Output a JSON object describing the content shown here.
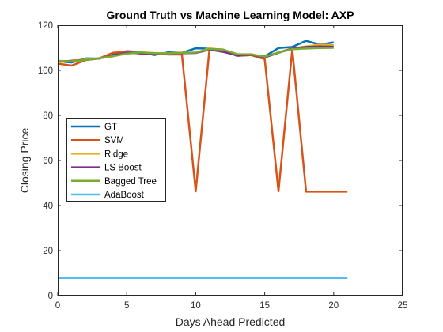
{
  "chart_data": {
    "type": "line",
    "title": "Ground Truth vs Machine Learning Model: AXP",
    "xlabel": "Days Ahead Predicted",
    "ylabel": "Closing Price",
    "xlim": [
      0,
      25
    ],
    "ylim": [
      0,
      120
    ],
    "x_ticks": [
      "0",
      "5",
      "10",
      "15",
      "20",
      "25"
    ],
    "y_ticks": [
      "0",
      "20",
      "40",
      "60",
      "80",
      "100",
      "120"
    ],
    "grid": false,
    "box": true,
    "legend_position": "middle-left",
    "x": [
      0,
      1,
      2,
      3,
      4,
      5,
      6,
      7,
      8,
      9,
      10,
      11,
      12,
      13,
      14,
      15,
      16,
      17,
      18,
      19,
      20,
      21
    ],
    "series": [
      {
        "name": "GT",
        "color": "#0072BD",
        "values": [
          104,
          103.5,
          105.3,
          105.2,
          107.3,
          108.5,
          108.2,
          106.8,
          108.0,
          107.8,
          109.8,
          109.6,
          108.7,
          106.4,
          106.8,
          106.2,
          109.9,
          110.4,
          113.1,
          111.4,
          112.4,
          null
        ]
      },
      {
        "name": "SVM",
        "color": "#D95319",
        "values": [
          103,
          102.1,
          104.5,
          105.3,
          107.8,
          108.3,
          107.4,
          107.5,
          107.0,
          107.0,
          46.3,
          109.6,
          109.2,
          106.5,
          106.8,
          105.0,
          46.3,
          109.3,
          46.2,
          46.2,
          46.2,
          46.2
        ]
      },
      {
        "name": "Ridge",
        "color": "#EDB120",
        "values": [
          103.5,
          104.3,
          104.8,
          105.4,
          106.2,
          107.5,
          108.0,
          107.7,
          107.6,
          107.9,
          107.8,
          109.8,
          109.0,
          106.9,
          107.2,
          105.9,
          108.0,
          109.8,
          110.6,
          111.4,
          111.2,
          null
        ]
      },
      {
        "name": "LS Boost",
        "color": "#7E2F8E",
        "values": [
          103.9,
          104.2,
          104.6,
          105.3,
          106.5,
          107.8,
          107.6,
          107.4,
          107.5,
          107.6,
          107.7,
          109.2,
          108.2,
          106.7,
          107.0,
          105.7,
          107.8,
          109.7,
          110.4,
          110.6,
          110.5,
          null
        ]
      },
      {
        "name": "Bagged Tree",
        "color": "#77AC30",
        "values": [
          104.2,
          104.0,
          104.6,
          105.4,
          106.3,
          107.4,
          108.0,
          107.6,
          107.5,
          107.7,
          107.9,
          109.5,
          109.2,
          107.2,
          107.1,
          106.1,
          107.9,
          109.4,
          109.7,
          109.9,
          110.0,
          null
        ]
      },
      {
        "name": "AdaBoost",
        "color": "#4DBEEE",
        "values": [
          7.8,
          7.8,
          7.8,
          7.8,
          7.8,
          7.8,
          7.8,
          7.8,
          7.8,
          7.8,
          7.8,
          7.8,
          7.8,
          7.8,
          7.8,
          7.8,
          7.8,
          7.8,
          7.8,
          7.8,
          7.8,
          7.8
        ]
      }
    ]
  }
}
